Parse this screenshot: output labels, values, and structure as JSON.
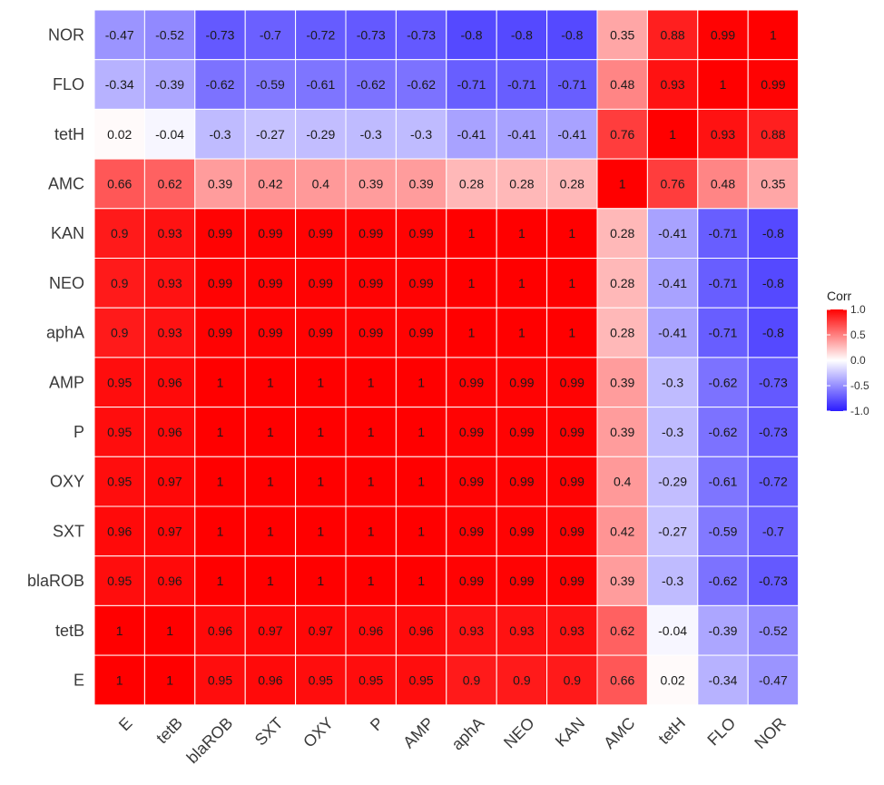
{
  "chart_data": {
    "type": "heatmap",
    "title": "",
    "xlabel": "",
    "ylabel": "",
    "x_labels": [
      "E",
      "tetB",
      "blaROB",
      "SXT",
      "OXY",
      "P",
      "AMP",
      "aphA",
      "NEO",
      "KAN",
      "AMC",
      "tetH",
      "FLO",
      "NOR"
    ],
    "y_labels_top_to_bottom": [
      "NOR",
      "FLO",
      "tetH",
      "AMC",
      "KAN",
      "NEO",
      "aphA",
      "AMP",
      "P",
      "OXY",
      "SXT",
      "blaROB",
      "tetB",
      "E"
    ],
    "values": [
      [
        "-0.47",
        "-0.52",
        "-0.73",
        "-0.7",
        "-0.72",
        "-0.73",
        "-0.73",
        "-0.8",
        "-0.8",
        "-0.8",
        "0.35",
        "0.88",
        "0.99",
        "1"
      ],
      [
        "-0.34",
        "-0.39",
        "-0.62",
        "-0.59",
        "-0.61",
        "-0.62",
        "-0.62",
        "-0.71",
        "-0.71",
        "-0.71",
        "0.48",
        "0.93",
        "1",
        "0.99"
      ],
      [
        "0.02",
        "-0.04",
        "-0.3",
        "-0.27",
        "-0.29",
        "-0.3",
        "-0.3",
        "-0.41",
        "-0.41",
        "-0.41",
        "0.76",
        "1",
        "0.93",
        "0.88"
      ],
      [
        "0.66",
        "0.62",
        "0.39",
        "0.42",
        "0.4",
        "0.39",
        "0.39",
        "0.28",
        "0.28",
        "0.28",
        "1",
        "0.76",
        "0.48",
        "0.35"
      ],
      [
        "0.9",
        "0.93",
        "0.99",
        "0.99",
        "0.99",
        "0.99",
        "0.99",
        "1",
        "1",
        "1",
        "0.28",
        "-0.41",
        "-0.71",
        "-0.8"
      ],
      [
        "0.9",
        "0.93",
        "0.99",
        "0.99",
        "0.99",
        "0.99",
        "0.99",
        "1",
        "1",
        "1",
        "0.28",
        "-0.41",
        "-0.71",
        "-0.8"
      ],
      [
        "0.9",
        "0.93",
        "0.99",
        "0.99",
        "0.99",
        "0.99",
        "0.99",
        "1",
        "1",
        "1",
        "0.28",
        "-0.41",
        "-0.71",
        "-0.8"
      ],
      [
        "0.95",
        "0.96",
        "1",
        "1",
        "1",
        "1",
        "1",
        "0.99",
        "0.99",
        "0.99",
        "0.39",
        "-0.3",
        "-0.62",
        "-0.73"
      ],
      [
        "0.95",
        "0.96",
        "1",
        "1",
        "1",
        "1",
        "1",
        "0.99",
        "0.99",
        "0.99",
        "0.39",
        "-0.3",
        "-0.62",
        "-0.73"
      ],
      [
        "0.95",
        "0.97",
        "1",
        "1",
        "1",
        "1",
        "1",
        "0.99",
        "0.99",
        "0.99",
        "0.4",
        "-0.29",
        "-0.61",
        "-0.72"
      ],
      [
        "0.96",
        "0.97",
        "1",
        "1",
        "1",
        "1",
        "1",
        "0.99",
        "0.99",
        "0.99",
        "0.42",
        "-0.27",
        "-0.59",
        "-0.7"
      ],
      [
        "0.95",
        "0.96",
        "1",
        "1",
        "1",
        "1",
        "1",
        "0.99",
        "0.99",
        "0.99",
        "0.39",
        "-0.3",
        "-0.62",
        "-0.73"
      ],
      [
        "1",
        "1",
        "0.96",
        "0.97",
        "0.97",
        "0.96",
        "0.96",
        "0.93",
        "0.93",
        "0.93",
        "0.62",
        "-0.04",
        "-0.39",
        "-0.52"
      ],
      [
        "1",
        "1",
        "0.95",
        "0.96",
        "0.95",
        "0.95",
        "0.95",
        "0.9",
        "0.9",
        "0.9",
        "0.66",
        "0.02",
        "-0.34",
        "-0.47"
      ]
    ],
    "color_scale": {
      "low": "#2b1cff",
      "mid": "#ffffff",
      "high": "#ff0000",
      "domain": [
        -1,
        0,
        1
      ]
    },
    "legend": {
      "title": "Corr",
      "ticks": [
        "1.0",
        "0.5",
        "0.0",
        "-0.5",
        "-1.0"
      ],
      "position": "right"
    },
    "grid": false
  }
}
